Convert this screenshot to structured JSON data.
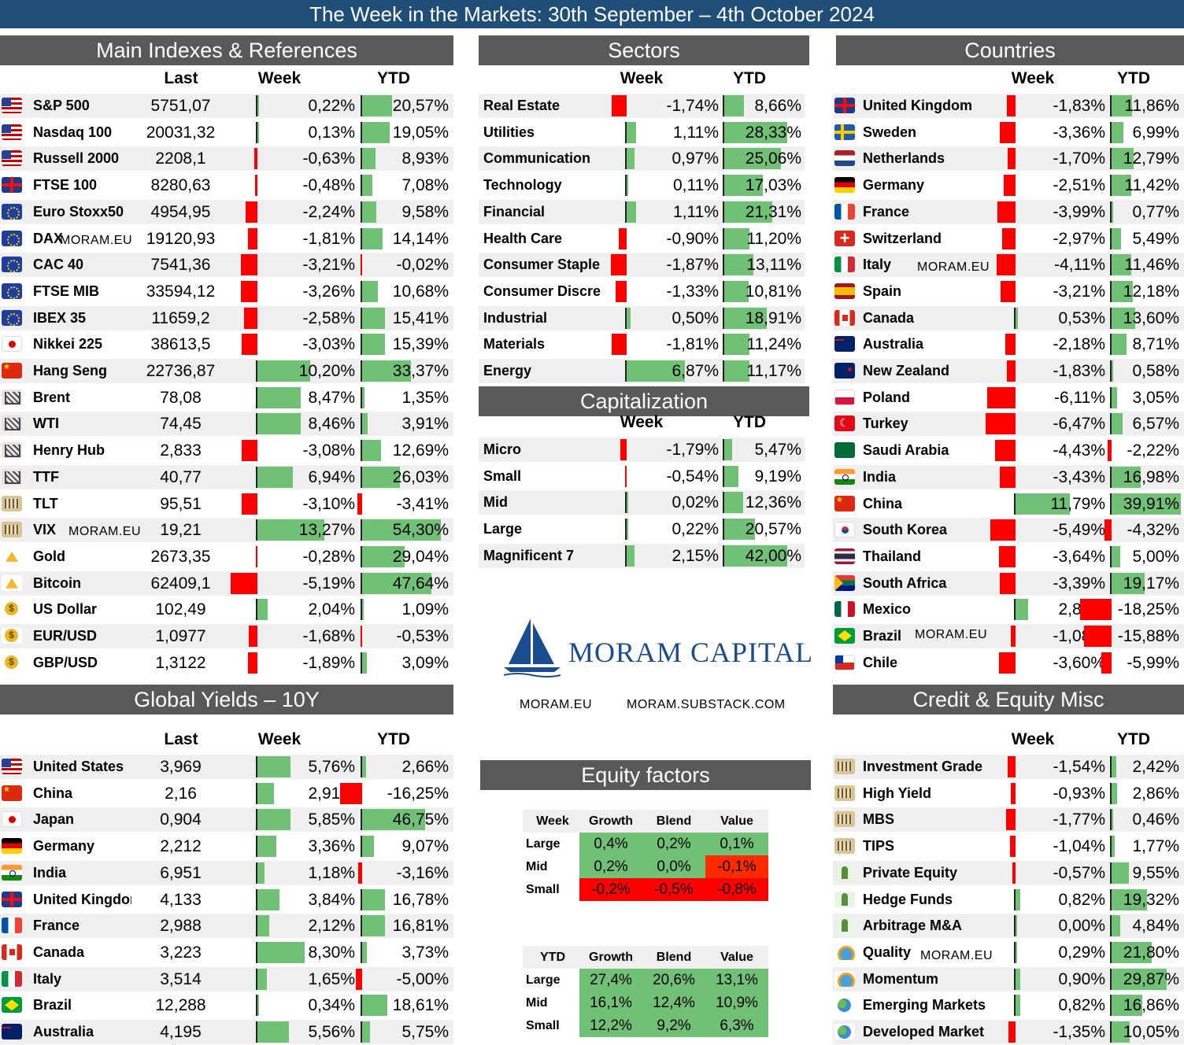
{
  "title": "The Week in the Markets: 30th September – 4th October 2024",
  "colors": {
    "title_bg": "#1f4e79",
    "header_bg": "#595959",
    "positive": "#70c175",
    "negative": "#ff0000",
    "brand": "#1a4c8f"
  },
  "sections": {
    "main": {
      "title": "Main Indexes & References",
      "col_last": "Last",
      "col_week": "Week",
      "col_ytd": "YTD",
      "rows": [
        {
          "icon": "us-flag-icon",
          "name": "S&P 500",
          "last": "5751,07",
          "week": "0,22%",
          "ytd": "20,57%",
          "week_v": 0.22,
          "ytd_v": 20.57
        },
        {
          "icon": "us-flag-icon",
          "name": "Nasdaq 100",
          "last": "20031,32",
          "week": "0,13%",
          "ytd": "19,05%",
          "week_v": 0.13,
          "ytd_v": 19.05
        },
        {
          "icon": "us-flag-icon",
          "name": "Russell 2000",
          "last": "2208,1",
          "week": "-0,63%",
          "ytd": "8,93%",
          "week_v": -0.63,
          "ytd_v": 8.93
        },
        {
          "icon": "uk-flag-icon",
          "name": "FTSE 100",
          "last": "8280,63",
          "week": "-0,48%",
          "ytd": "7,08%",
          "week_v": -0.48,
          "ytd_v": 7.08
        },
        {
          "icon": "eu-flag-icon",
          "name": "Euro Stoxx50",
          "last": "4954,95",
          "week": "-2,24%",
          "ytd": "9,58%",
          "week_v": -2.24,
          "ytd_v": 9.58
        },
        {
          "icon": "eu-flag-icon",
          "name": "DAX",
          "last": "19120,93",
          "week": "-1,81%",
          "ytd": "14,14%",
          "week_v": -1.81,
          "ytd_v": 14.14
        },
        {
          "icon": "eu-flag-icon",
          "name": "CAC 40",
          "last": "7541,36",
          "week": "-3,21%",
          "ytd": "-0,02%",
          "week_v": -3.21,
          "ytd_v": -0.02
        },
        {
          "icon": "eu-flag-icon",
          "name": "FTSE MIB",
          "last": "33594,12",
          "week": "-3,26%",
          "ytd": "10,68%",
          "week_v": -3.26,
          "ytd_v": 10.68
        },
        {
          "icon": "eu-flag-icon",
          "name": "IBEX 35",
          "last": "11659,2",
          "week": "-2,58%",
          "ytd": "15,41%",
          "week_v": -2.58,
          "ytd_v": 15.41
        },
        {
          "icon": "jp-flag-icon",
          "name": "Nikkei 225",
          "last": "38613,5",
          "week": "-3,03%",
          "ytd": "15,39%",
          "week_v": -3.03,
          "ytd_v": 15.39
        },
        {
          "icon": "cn-flag-icon",
          "name": "Hang Seng",
          "last": "22736,87",
          "week": "10,20%",
          "ytd": "33,37%",
          "week_v": 10.2,
          "ytd_v": 33.37
        },
        {
          "icon": "oil-rig-icon",
          "name": "Brent",
          "last": "78,08",
          "week": "8,47%",
          "ytd": "1,35%",
          "week_v": 8.47,
          "ytd_v": 1.35
        },
        {
          "icon": "oil-rig-icon",
          "name": "WTI",
          "last": "74,45",
          "week": "8,46%",
          "ytd": "3,91%",
          "week_v": 8.46,
          "ytd_v": 3.91
        },
        {
          "icon": "oil-rig-icon",
          "name": "Henry Hub",
          "last": "2,833",
          "week": "-3,08%",
          "ytd": "12,69%",
          "week_v": -3.08,
          "ytd_v": 12.69
        },
        {
          "icon": "oil-rig-icon",
          "name": "TTF",
          "last": "40,77",
          "week": "6,94%",
          "ytd": "26,03%",
          "week_v": 6.94,
          "ytd_v": 26.03
        },
        {
          "icon": "bank-icon",
          "name": "TLT",
          "last": "95,51",
          "week": "-3,10%",
          "ytd": "-3,41%",
          "week_v": -3.1,
          "ytd_v": -3.41
        },
        {
          "icon": "bank-icon",
          "name": "VIX",
          "last": "19,21",
          "week": "13,27%",
          "ytd": "54,30%",
          "week_v": 13.27,
          "ytd_v": 54.3
        },
        {
          "icon": "gold-bars-icon",
          "name": "Gold",
          "last": "2673,35",
          "week": "-0,28%",
          "ytd": "29,04%",
          "week_v": -0.28,
          "ytd_v": 29.04
        },
        {
          "icon": "gold-bars-icon",
          "name": "Bitcoin",
          "last": "62409,1",
          "week": "-5,19%",
          "ytd": "47,64%",
          "week_v": -5.19,
          "ytd_v": 47.64
        },
        {
          "icon": "coins-icon",
          "name": "US Dollar",
          "last": "102,49",
          "week": "2,04%",
          "ytd": "1,09%",
          "week_v": 2.04,
          "ytd_v": 1.09
        },
        {
          "icon": "coins-icon",
          "name": "EUR/USD",
          "last": "1,0977",
          "week": "-1,68%",
          "ytd": "-0,53%",
          "week_v": -1.68,
          "ytd_v": -0.53
        },
        {
          "icon": "coins-icon",
          "name": "GBP/USD",
          "last": "1,3122",
          "week": "-1,89%",
          "ytd": "3,09%",
          "week_v": -1.89,
          "ytd_v": 3.09
        }
      ]
    },
    "sectors": {
      "title": "Sectors",
      "col_week": "Week",
      "col_ytd": "YTD",
      "rows": [
        {
          "name": "Real Estate",
          "week": "-1,74%",
          "ytd": "8,66%",
          "week_v": -1.74,
          "ytd_v": 8.66
        },
        {
          "name": "Utilities",
          "week": "1,11%",
          "ytd": "28,33%",
          "week_v": 1.11,
          "ytd_v": 28.33
        },
        {
          "name": "Communication",
          "week": "0,97%",
          "ytd": "25,06%",
          "week_v": 0.97,
          "ytd_v": 25.06
        },
        {
          "name": "Technology",
          "week": "0,11%",
          "ytd": "17,03%",
          "week_v": 0.11,
          "ytd_v": 17.03
        },
        {
          "name": "Financial",
          "week": "1,11%",
          "ytd": "21,31%",
          "week_v": 1.11,
          "ytd_v": 21.31
        },
        {
          "name": "Health Care",
          "week": "-0,90%",
          "ytd": "11,20%",
          "week_v": -0.9,
          "ytd_v": 11.2
        },
        {
          "name": "Consumer Staple",
          "week": "-1,87%",
          "ytd": "13,11%",
          "week_v": -1.87,
          "ytd_v": 13.11
        },
        {
          "name": "Consumer Discre",
          "week": "-1,33%",
          "ytd": "10,81%",
          "week_v": -1.33,
          "ytd_v": 10.81
        },
        {
          "name": "Industrial",
          "week": "0,50%",
          "ytd": "18,91%",
          "week_v": 0.5,
          "ytd_v": 18.91
        },
        {
          "name": "Materials",
          "week": "-1,81%",
          "ytd": "11,24%",
          "week_v": -1.81,
          "ytd_v": 11.24
        },
        {
          "name": "Energy",
          "week": "6,87%",
          "ytd": "11,17%",
          "week_v": 6.87,
          "ytd_v": 11.17
        }
      ]
    },
    "capitalization": {
      "title": "Capitalization",
      "col_week": "Week",
      "col_ytd": "YTD",
      "rows": [
        {
          "name": "Micro",
          "week": "-1,79%",
          "ytd": "5,47%",
          "week_v": -1.79,
          "ytd_v": 5.47
        },
        {
          "name": "Small",
          "week": "-0,54%",
          "ytd": "9,19%",
          "week_v": -0.54,
          "ytd_v": 9.19
        },
        {
          "name": "Mid",
          "week": "0,02%",
          "ytd": "12,36%",
          "week_v": 0.02,
          "ytd_v": 12.36
        },
        {
          "name": "Large",
          "week": "0,22%",
          "ytd": "20,57%",
          "week_v": 0.22,
          "ytd_v": 20.57
        },
        {
          "name": "Magnificent 7",
          "week": "2,15%",
          "ytd": "42,00%",
          "week_v": 2.15,
          "ytd_v": 42.0
        }
      ]
    },
    "countries": {
      "title": "Countries",
      "col_week": "Week",
      "col_ytd": "YTD",
      "rows": [
        {
          "icon": "uk-flag-icon",
          "name": "United Kingdom",
          "week": "-1,83%",
          "ytd": "11,86%",
          "week_v": -1.83,
          "ytd_v": 11.86
        },
        {
          "icon": "se-flag-icon",
          "name": "Sweden",
          "week": "-3,36%",
          "ytd": "6,99%",
          "week_v": -3.36,
          "ytd_v": 6.99
        },
        {
          "icon": "nl-flag-icon",
          "name": "Netherlands",
          "week": "-1,70%",
          "ytd": "12,79%",
          "week_v": -1.7,
          "ytd_v": 12.79
        },
        {
          "icon": "de-flag-icon",
          "name": "Germany",
          "week": "-2,51%",
          "ytd": "11,42%",
          "week_v": -2.51,
          "ytd_v": 11.42
        },
        {
          "icon": "fr-flag-icon",
          "name": "France",
          "week": "-3,99%",
          "ytd": "0,77%",
          "week_v": -3.99,
          "ytd_v": 0.77
        },
        {
          "icon": "ch-flag-icon",
          "name": "Switzerland",
          "week": "-2,97%",
          "ytd": "5,49%",
          "week_v": -2.97,
          "ytd_v": 5.49
        },
        {
          "icon": "it-flag-icon",
          "name": "Italy",
          "week": "-4,11%",
          "ytd": "11,46%",
          "week_v": -4.11,
          "ytd_v": 11.46
        },
        {
          "icon": "es-flag-icon",
          "name": "Spain",
          "week": "-3,21%",
          "ytd": "12,18%",
          "week_v": -3.21,
          "ytd_v": 12.18
        },
        {
          "icon": "ca-flag-icon",
          "name": "Canada",
          "week": "0,53%",
          "ytd": "13,60%",
          "week_v": 0.53,
          "ytd_v": 13.6
        },
        {
          "icon": "au-flag-icon",
          "name": "Australia",
          "week": "-2,18%",
          "ytd": "8,71%",
          "week_v": -2.18,
          "ytd_v": 8.71
        },
        {
          "icon": "nz-flag-icon",
          "name": "New Zealand",
          "week": "-1,83%",
          "ytd": "0,58%",
          "week_v": -1.83,
          "ytd_v": 0.58
        },
        {
          "icon": "pl-flag-icon",
          "name": "Poland",
          "week": "-6,11%",
          "ytd": "3,05%",
          "week_v": -6.11,
          "ytd_v": 3.05
        },
        {
          "icon": "tr-flag-icon",
          "name": "Turkey",
          "week": "-6,47%",
          "ytd": "6,57%",
          "week_v": -6.47,
          "ytd_v": 6.57
        },
        {
          "icon": "sa-flag-icon",
          "name": "Saudi Arabia",
          "week": "-4,43%",
          "ytd": "-2,22%",
          "week_v": -4.43,
          "ytd_v": -2.22
        },
        {
          "icon": "in-flag-icon",
          "name": "India",
          "week": "-3,43%",
          "ytd": "16,98%",
          "week_v": -3.43,
          "ytd_v": 16.98
        },
        {
          "icon": "cn-flag-icon",
          "name": "China",
          "week": "11,79%",
          "ytd": "39,91%",
          "week_v": 11.79,
          "ytd_v": 39.91
        },
        {
          "icon": "kr-flag-icon",
          "name": "South Korea",
          "week": "-5,49%",
          "ytd": "-4,32%",
          "week_v": -5.49,
          "ytd_v": -4.32
        },
        {
          "icon": "th-flag-icon",
          "name": "Thailand",
          "week": "-3,64%",
          "ytd": "5,00%",
          "week_v": -3.64,
          "ytd_v": 5.0
        },
        {
          "icon": "za-flag-icon",
          "name": "South Africa",
          "week": "-3,39%",
          "ytd": "19,17%",
          "week_v": -3.39,
          "ytd_v": 19.17
        },
        {
          "icon": "mx-flag-icon",
          "name": "Mexico",
          "week": "2,80%",
          "ytd": "-18,25%",
          "week_v": 2.8,
          "ytd_v": -18.25
        },
        {
          "icon": "br-flag-icon",
          "name": "Brazil",
          "week": "-1,08%",
          "ytd": "-15,88%",
          "week_v": -1.08,
          "ytd_v": -15.88
        },
        {
          "icon": "cl-flag-icon",
          "name": "Chile",
          "week": "-3,60%",
          "ytd": "-5,99%",
          "week_v": -3.6,
          "ytd_v": -5.99
        }
      ]
    },
    "yields": {
      "title": "Global Yields – 10Y",
      "col_last": "Last",
      "col_week": "Week",
      "col_ytd": "YTD",
      "rows": [
        {
          "icon": "us-flag-icon",
          "name": "United States",
          "last": "3,969",
          "week": "5,76%",
          "ytd": "2,66%",
          "week_v": 5.76,
          "ytd_v": 2.66
        },
        {
          "icon": "cn-flag-icon",
          "name": "China",
          "last": "2,16",
          "week": "2,91%",
          "ytd": "-16,25%",
          "week_v": 2.91,
          "ytd_v": -16.25
        },
        {
          "icon": "jp-flag-icon",
          "name": "Japan",
          "last": "0,904",
          "week": "5,85%",
          "ytd": "46,75%",
          "week_v": 5.85,
          "ytd_v": 46.75
        },
        {
          "icon": "de-flag-icon",
          "name": "Germany",
          "last": "2,212",
          "week": "3,36%",
          "ytd": "9,07%",
          "week_v": 3.36,
          "ytd_v": 9.07
        },
        {
          "icon": "in-flag-icon",
          "name": "India",
          "last": "6,951",
          "week": "1,18%",
          "ytd": "-3,16%",
          "week_v": 1.18,
          "ytd_v": -3.16
        },
        {
          "icon": "uk-flag-icon",
          "name": "United Kingdom",
          "last": "4,133",
          "week": "3,84%",
          "ytd": "16,78%",
          "week_v": 3.84,
          "ytd_v": 16.78
        },
        {
          "icon": "fr-flag-icon",
          "name": "France",
          "last": "2,988",
          "week": "2,12%",
          "ytd": "16,81%",
          "week_v": 2.12,
          "ytd_v": 16.81
        },
        {
          "icon": "ca-flag-icon",
          "name": "Canada",
          "last": "3,223",
          "week": "8,30%",
          "ytd": "3,73%",
          "week_v": 8.3,
          "ytd_v": 3.73
        },
        {
          "icon": "it-flag-icon",
          "name": "Italy",
          "last": "3,514",
          "week": "1,65%",
          "ytd": "-5,00%",
          "week_v": 1.65,
          "ytd_v": -5.0
        },
        {
          "icon": "br-flag-icon",
          "name": "Brazil",
          "last": "12,288",
          "week": "0,34%",
          "ytd": "18,61%",
          "week_v": 0.34,
          "ytd_v": 18.61
        },
        {
          "icon": "au-flag-icon",
          "name": "Australia",
          "last": "4,195",
          "week": "5,56%",
          "ytd": "5,75%",
          "week_v": 5.56,
          "ytd_v": 5.75
        }
      ]
    },
    "credit": {
      "title": "Credit & Equity Misc",
      "col_week": "Week",
      "col_ytd": "YTD",
      "rows": [
        {
          "icon": "bank-icon",
          "name": "Investment Grade",
          "week": "-1,54%",
          "ytd": "2,42%",
          "week_v": -1.54,
          "ytd_v": 2.42
        },
        {
          "icon": "bank-icon",
          "name": "High Yield",
          "week": "-0,93%",
          "ytd": "2,86%",
          "week_v": -0.93,
          "ytd_v": 2.86
        },
        {
          "icon": "bank-icon",
          "name": "MBS",
          "week": "-1,77%",
          "ytd": "0,46%",
          "week_v": -1.77,
          "ytd_v": 0.46
        },
        {
          "icon": "bank-icon",
          "name": "TIPS",
          "week": "-1,04%",
          "ytd": "1,77%",
          "week_v": -1.04,
          "ytd_v": 1.77
        },
        {
          "icon": "money-tree-icon",
          "name": "Private Equity",
          "week": "-0,57%",
          "ytd": "9,55%",
          "week_v": -0.57,
          "ytd_v": 9.55
        },
        {
          "icon": "money-tree-icon",
          "name": "Hedge Funds",
          "week": "0,82%",
          "ytd": "19,32%",
          "week_v": 0.82,
          "ytd_v": 19.32
        },
        {
          "icon": "money-tree-icon",
          "name": "Arbitrage M&A",
          "week": "0,00%",
          "ytd": "4,84%",
          "week_v": 0.0,
          "ytd_v": 4.84
        },
        {
          "icon": "quality-icon",
          "name": "Quality",
          "week": "0,29%",
          "ytd": "21,80%",
          "week_v": 0.29,
          "ytd_v": 21.8
        },
        {
          "icon": "quality-icon",
          "name": "Momentum",
          "week": "0,90%",
          "ytd": "29,87%",
          "week_v": 0.9,
          "ytd_v": 29.87
        },
        {
          "icon": "globe-icon",
          "name": "Emerging Markets",
          "week": "0,82%",
          "ytd": "16,86%",
          "week_v": 0.82,
          "ytd_v": 16.86
        },
        {
          "icon": "globe-icon",
          "name": "Developed Market",
          "week": "-1,35%",
          "ytd": "10,05%",
          "week_v": -1.35,
          "ytd_v": 10.05
        }
      ]
    },
    "factors": {
      "title": "Equity factors",
      "week": {
        "label": "Week",
        "cols": [
          "Growth",
          "Blend",
          "Value"
        ],
        "rows": [
          {
            "name": "Large",
            "vals": [
              "0,4%",
              "0,2%",
              "0,1%"
            ],
            "nums": [
              0.4,
              0.2,
              0.1
            ]
          },
          {
            "name": "Mid",
            "vals": [
              "0,2%",
              "0,0%",
              "-0,1%"
            ],
            "nums": [
              0.2,
              0.0,
              -0.1
            ]
          },
          {
            "name": "Small",
            "vals": [
              "-0,2%",
              "-0,5%",
              "-0,8%"
            ],
            "nums": [
              -0.2,
              -0.5,
              -0.8
            ]
          }
        ]
      },
      "ytd": {
        "label": "YTD",
        "cols": [
          "Growth",
          "Blend",
          "Value"
        ],
        "rows": [
          {
            "name": "Large",
            "vals": [
              "27,4%",
              "20,6%",
              "13,1%"
            ],
            "nums": [
              27.4,
              20.6,
              13.1
            ]
          },
          {
            "name": "Mid",
            "vals": [
              "16,1%",
              "12,4%",
              "10,9%"
            ],
            "nums": [
              16.1,
              12.4,
              10.9
            ]
          },
          {
            "name": "Small",
            "vals": [
              "12,2%",
              "9,2%",
              "6,3%"
            ],
            "nums": [
              12.2,
              9.2,
              6.3
            ]
          }
        ]
      }
    }
  },
  "brand": {
    "logo_text": "MORAM CAPITAL",
    "site": "MORAM.EU",
    "substack": "MORAM.SUBSTACK.COM",
    "watermark": "MORAM.EU"
  }
}
